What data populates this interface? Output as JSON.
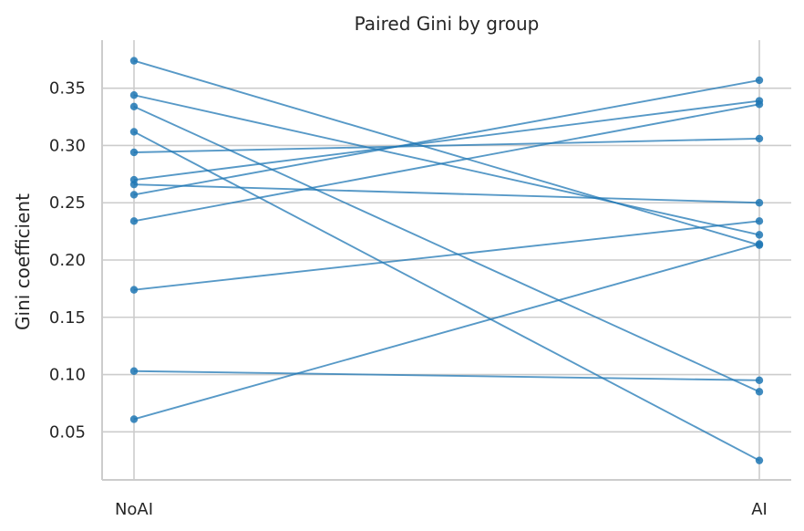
{
  "chart_data": {
    "type": "line",
    "title": "Paired Gini by group",
    "xlabel": "",
    "ylabel": "Gini coefficient",
    "categories": [
      "NoAI",
      "AI"
    ],
    "yticks": [
      "0.05",
      "0.10",
      "0.15",
      "0.20",
      "0.25",
      "0.30",
      "0.35"
    ],
    "ylim": [
      0.008,
      0.392
    ],
    "grid": true,
    "colors": {
      "line": "#1f77b4",
      "grid": "#cccccc",
      "text": "#262626"
    },
    "pairs": [
      {
        "values": [
          0.374,
          0.213
        ]
      },
      {
        "values": [
          0.344,
          0.222
        ]
      },
      {
        "values": [
          0.334,
          0.085
        ]
      },
      {
        "values": [
          0.312,
          0.025
        ]
      },
      {
        "values": [
          0.294,
          0.306
        ]
      },
      {
        "values": [
          0.27,
          0.339
        ]
      },
      {
        "values": [
          0.266,
          0.25
        ]
      },
      {
        "values": [
          0.257,
          0.357
        ]
      },
      {
        "values": [
          0.234,
          0.336
        ]
      },
      {
        "values": [
          0.174,
          0.234
        ]
      },
      {
        "values": [
          0.103,
          0.095
        ]
      },
      {
        "values": [
          0.061,
          0.214
        ]
      }
    ]
  }
}
